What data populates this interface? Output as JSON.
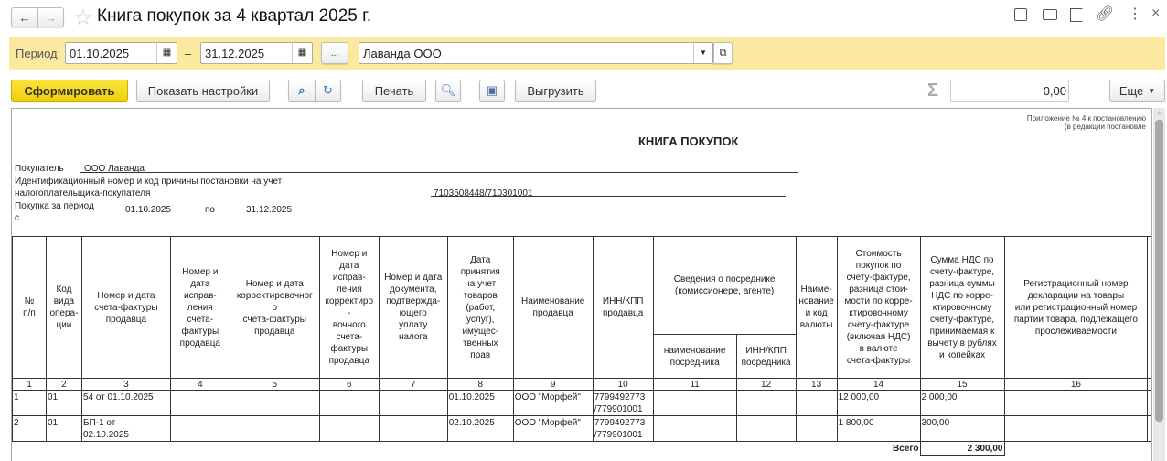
{
  "window": {
    "title": "Книга покупок за 4 квартал 2025 г."
  },
  "filters": {
    "period_label": "Период:",
    "date_from": "01.10.2025",
    "dash": "–",
    "date_to": "31.12.2025",
    "more_label": "...",
    "organization": "Лаванда ООО"
  },
  "toolbar": {
    "generate": "Сформировать",
    "show_settings": "Показать настройки",
    "print": "Печать",
    "export": "Выгрузить",
    "sum_value": "0,00",
    "more": "Еще"
  },
  "report": {
    "note1": "Приложение № 4 к постановлению",
    "note2": "(в редакции постановле",
    "title": "КНИГА ПОКУПОК",
    "buyer_label": "Покупатель",
    "buyer": "ООО Лаванда",
    "inn_label1": "Идентификационный номер и код причины постановки на учет",
    "inn_label2": "налогоплательщика-покупателя",
    "inn": "7103508448/710301001",
    "period_label": "Покупка за период\nс",
    "period_from": "01.10.2025",
    "period_to_label": "по",
    "period_to": "31.12.2025",
    "headers": [
      "№\nп/п",
      "Код\nвида\nопера-\nции",
      "Номер и дата\nсчета-фактуры\nпродавца",
      "Номер и\nдата\nисправ-\nления\nсчета-\nфактуры\nпродавца",
      "Номер и дата\nкорректировочног\nо\nсчета-фактуры\nпродавца",
      "Номер и\nдата\nисправ-\nления\nкорректиро\n-\nвочного\nсчета-\nфактуры\nпродавца",
      "Номер и дата\nдокумента,\nподтвержда-\nющего\nуплату\nналога",
      "Дата\nпринятия\nна учет\nтоваров\n(работ,\nуслуг),\nимущес-\nтвенных\nправ",
      "Наименование\nпродавца",
      "ИНН/КПП\nпродавца",
      "Сведения о посреднике\n(комиссионере, агенте)",
      "Наиме-\nнование\nи код\nвалюты",
      "Стоимость\nпокупок по\nсчету-фактуре,\nразница стои-\nмости по корре-\nктировочному\nсчету-фактуре\n(включая НДС)\nв валюте\nсчета-фактуры",
      "Сумма НДС по\nсчету-фактуре,\nразница суммы\nНДС по корре-\nктировочному\nсчету-фактуре,\nпринимаемая к\nвычету в рублях\nи копейках",
      "Регистрационный номер\nдекларации на товары\nили регистрационный номер\nпартии товара, подлежащего\nпрослеживаемости"
    ],
    "sub_headers": [
      "наименование\nпосредника",
      "ИНН/КПП\nпосредника"
    ],
    "col_numbers": [
      "1",
      "2",
      "3",
      "4",
      "5",
      "6",
      "7",
      "8",
      "9",
      "10",
      "11",
      "12",
      "13",
      "14",
      "15",
      "16"
    ],
    "rows": [
      [
        "1",
        "01",
        "54 от 01.10.2025",
        "",
        "",
        "",
        "",
        "01.10.2025",
        "ООО \"Морфей\"",
        "7799492773\n/779901001",
        "",
        "",
        "",
        "12 000,00",
        "2 000,00",
        ""
      ],
      [
        "2",
        "01",
        "БП-1 от\n02.10.2025",
        "",
        "",
        "",
        "",
        "02.10.2025",
        "ООО \"Морфей\"",
        "7799492773\n/779901001",
        "",
        "",
        "",
        "1 800,00",
        "300,00",
        ""
      ]
    ],
    "total_label": "Всего",
    "total_vat": "2 300,00"
  },
  "colors": {
    "accent": "#f5d71c",
    "filter_bar": "#fbe9a0"
  }
}
